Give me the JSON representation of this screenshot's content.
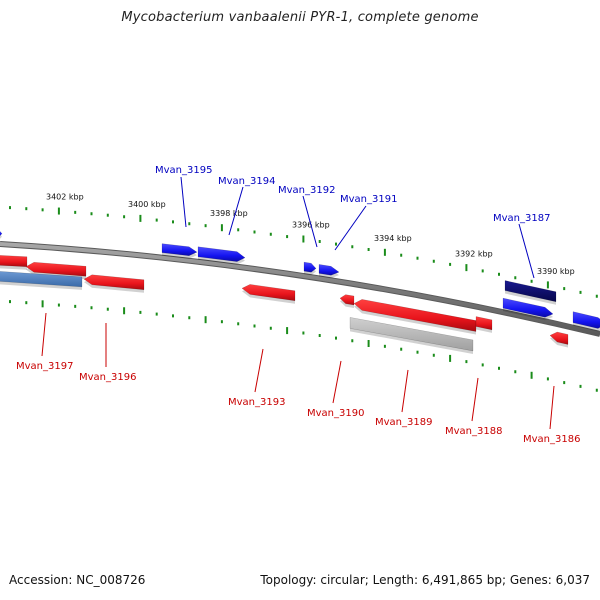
{
  "title": "Mycobacterium vanbaalenii PYR-1, complete genome",
  "footer": {
    "accession": "Accession: NC_008726",
    "topology": "Topology: circular; Length: 6,491,865 bp; Genes: 6,037"
  },
  "colors": {
    "backbone": "#808080",
    "forward_gene": "#1a1aff",
    "reverse_gene": "#e8141c",
    "highlight_forward": "#0c0c7a",
    "highlight_reverse": "#4a7fbf",
    "grey_gene": "#b8b8b8",
    "tick": "#1a8c1a",
    "forward_label": "#0000c0",
    "reverse_label": "#c80000"
  },
  "scale_ticks": [
    "3402 kbp",
    "3400 kbp",
    "3398 kbp",
    "3396 kbp",
    "3394 kbp",
    "3392 kbp",
    "3390 kbp"
  ],
  "forward_genes": [
    "Mvan_3195",
    "Mvan_3194",
    "Mvan_3192",
    "Mvan_3191",
    "Mvan_3187"
  ],
  "reverse_genes": [
    "Mvan_3197",
    "Mvan_3196",
    "Mvan_3193",
    "Mvan_3190",
    "Mvan_3189",
    "Mvan_3188",
    "Mvan_3186"
  ]
}
